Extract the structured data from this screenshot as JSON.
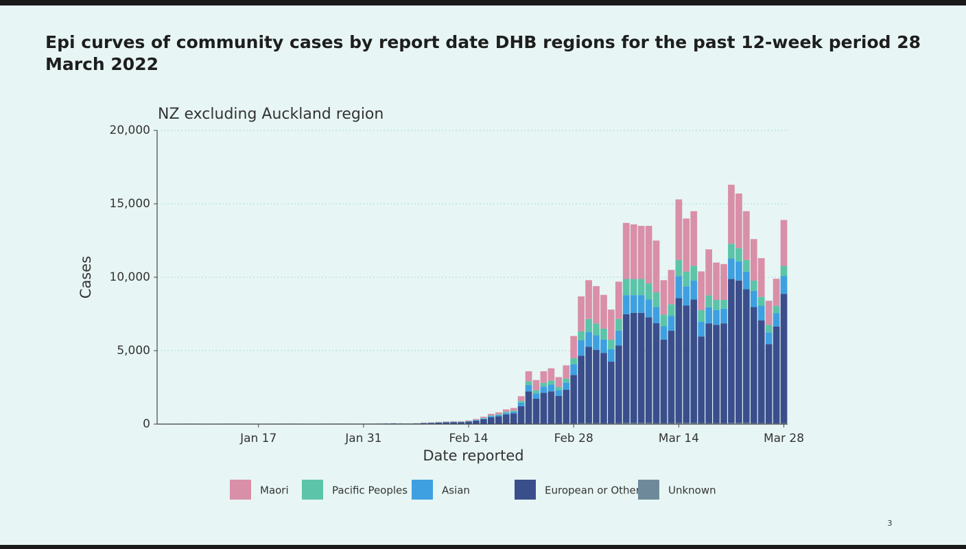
{
  "slide": {
    "page_number": "3"
  },
  "chart_data": {
    "type": "stacked_bar",
    "title": "Epi curves of community cases by report date DHB regions for the past 12-week period 28 March 2022",
    "subtitle": "NZ excluding Auckland region",
    "y_label": "Cases",
    "x_label": "Date reported",
    "grid": true,
    "legend": "bottom",
    "ylim": [
      0,
      20000
    ],
    "yticks": [
      0,
      {
        "value": 5000,
        "label": "5,000"
      },
      {
        "value": 10000,
        "label": "10,000"
      },
      {
        "value": 15000,
        "label": "15,000"
      },
      {
        "value": 20000,
        "label": "20,000"
      }
    ],
    "categories": [
      null,
      null,
      null,
      null,
      null,
      null,
      null,
      null,
      null,
      null,
      null,
      null,
      null,
      "Jan 17",
      null,
      null,
      null,
      null,
      null,
      null,
      null,
      null,
      null,
      null,
      null,
      null,
      null,
      "Jan 31",
      null,
      null,
      null,
      null,
      null,
      null,
      null,
      null,
      null,
      null,
      null,
      null,
      null,
      "Feb 14",
      null,
      null,
      null,
      null,
      null,
      null,
      null,
      null,
      null,
      null,
      null,
      null,
      null,
      "Feb 28",
      null,
      null,
      null,
      null,
      null,
      null,
      null,
      null,
      null,
      null,
      null,
      null,
      null,
      "Mar 14",
      null,
      null,
      null,
      null,
      null,
      null,
      null,
      null,
      null,
      null,
      null,
      null,
      null,
      "Mar 28"
    ],
    "series": [
      {
        "name": "Maori",
        "color": "#d98fa8",
        "values": [
          6,
          6,
          6,
          6,
          6,
          6,
          6,
          6,
          6,
          6,
          6,
          6,
          6,
          6,
          6,
          6,
          6,
          6,
          6,
          6,
          6,
          6,
          6,
          6,
          6,
          6,
          6,
          6,
          6,
          6,
          6,
          6,
          6,
          6,
          6,
          16,
          20,
          24,
          29,
          33,
          33,
          40,
          57,
          82,
          116,
          132,
          165,
          183,
          320,
          690,
          700,
          790,
          840,
          670,
          900,
          1510,
          2390,
          2640,
          2540,
          2300,
          2050,
          2540,
          3820,
          3720,
          3620,
          3920,
          3530,
          2340,
          2340,
          4120,
          3620,
          3720,
          2640,
          3140,
          2540,
          2440,
          4020,
          3720,
          3320,
          2830,
          2640,
          1650,
          1850,
          3130
        ]
      },
      {
        "name": "Pacific Peoples",
        "color": "#5cc4a8",
        "values": [
          2,
          2,
          2,
          2,
          2,
          2,
          2,
          2,
          2,
          2,
          2,
          2,
          2,
          2,
          2,
          2,
          2,
          2,
          2,
          2,
          2,
          2,
          2,
          2,
          2,
          2,
          2,
          2,
          2,
          2,
          2,
          2,
          2,
          2,
          2,
          7,
          8,
          11,
          13,
          14,
          14,
          18,
          25,
          35,
          49,
          56,
          70,
          77,
          130,
          250,
          210,
          250,
          270,
          220,
          280,
          420,
          610,
          900,
          800,
          750,
          650,
          800,
          1100,
          1100,
          1100,
          1100,
          1000,
          800,
          800,
          1100,
          1000,
          1000,
          800,
          800,
          700,
          600,
          1000,
          900,
          800,
          700,
          600,
          500,
          500,
          700
        ]
      },
      {
        "name": "Asian",
        "color": "#3ea0e0",
        "values": [
          3,
          3,
          3,
          3,
          3,
          3,
          3,
          3,
          3,
          3,
          3,
          3,
          3,
          3,
          3,
          3,
          3,
          3,
          3,
          3,
          3,
          3,
          3,
          3,
          3,
          3,
          3,
          3,
          3,
          3,
          3,
          3,
          3,
          3,
          3,
          10,
          12,
          15,
          18,
          20,
          20,
          25,
          35,
          50,
          70,
          80,
          100,
          110,
          230,
          430,
          360,
          430,
          460,
          380,
          480,
          720,
          1040,
          1000,
          1000,
          900,
          850,
          1000,
          1300,
          1200,
          1200,
          1200,
          1100,
          900,
          1000,
          1500,
          1300,
          1300,
          1000,
          1100,
          1000,
          1000,
          1400,
          1300,
          1200,
          1100,
          1000,
          800,
          900,
          1200
        ]
      },
      {
        "name": "European or Other",
        "color": "#3a4e8c",
        "values": [
          15,
          18,
          20,
          22,
          25,
          20,
          18,
          20,
          22,
          25,
          25,
          22,
          20,
          18,
          20,
          22,
          25,
          28,
          25,
          22,
          20,
          22,
          25,
          28,
          30,
          28,
          25,
          25,
          30,
          35,
          40,
          45,
          40,
          38,
          45,
          65,
          78,
          98,
          117,
          130,
          130,
          163,
          228,
          325,
          455,
          520,
          650,
          715,
          1200,
          2200,
          1700,
          2100,
          2200,
          1900,
          2300,
          3300,
          4600,
          5200,
          5000,
          4800,
          4200,
          5300,
          7400,
          7500,
          7500,
          7200,
          6800,
          5700,
          6300,
          8500,
          8000,
          8400,
          5900,
          6800,
          6700,
          6800,
          9800,
          9700,
          9100,
          7900,
          7000,
          5400,
          6600,
          8800
        ]
      },
      {
        "name": "Unknown",
        "color": "#6e8a9a",
        "values": [
          1,
          1,
          1,
          1,
          1,
          1,
          1,
          1,
          1,
          1,
          1,
          1,
          1,
          1,
          1,
          1,
          1,
          1,
          1,
          1,
          1,
          1,
          1,
          1,
          1,
          1,
          1,
          1,
          1,
          1,
          1,
          1,
          1,
          1,
          1,
          2,
          2,
          2,
          3,
          3,
          3,
          4,
          5,
          8,
          10,
          12,
          15,
          15,
          20,
          30,
          30,
          30,
          30,
          30,
          40,
          50,
          60,
          60,
          60,
          50,
          50,
          60,
          80,
          80,
          80,
          80,
          70,
          60,
          60,
          80,
          80,
          80,
          60,
          60,
          60,
          60,
          80,
          80,
          80,
          70,
          60,
          50,
          50,
          70
        ]
      }
    ]
  }
}
